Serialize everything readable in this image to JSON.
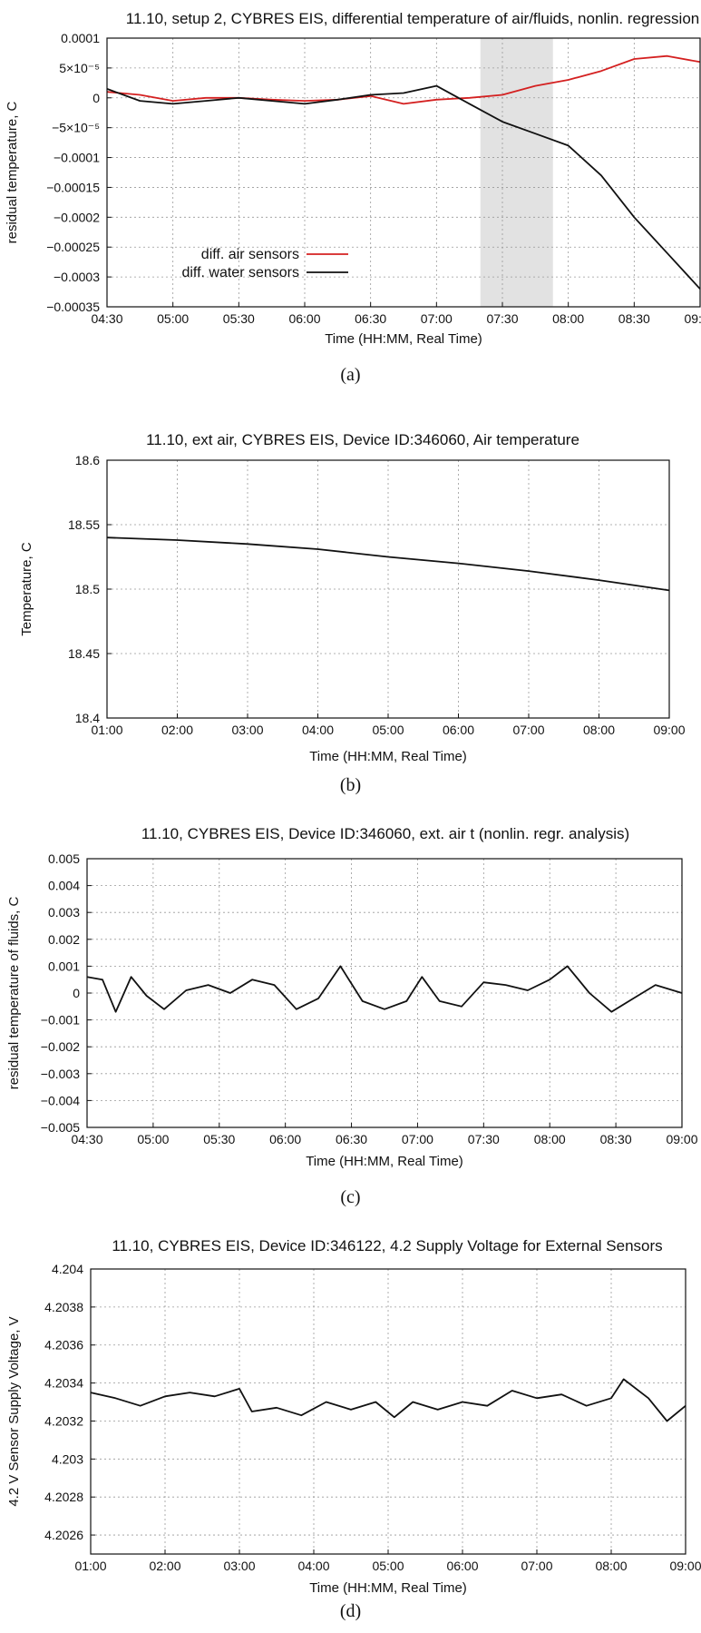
{
  "chart_data": [
    {
      "type": "line",
      "title": "11.10, setup 2, CYBRES EIS, differential temperature of air/fluids, nonlin. regression",
      "xlabel": "Time (HH:MM, Real Time)",
      "ylabel": "residual temperature, C",
      "x_unit": "time HH:MM",
      "xlim": [
        "04:30",
        "09:00"
      ],
      "ylim": [
        -0.00035,
        0.0001
      ],
      "x_ticks": [
        "04:30",
        "05:00",
        "05:30",
        "06:00",
        "06:30",
        "07:00",
        "07:30",
        "08:00",
        "08:30",
        "09:00"
      ],
      "y_ticks": [
        "0.0001",
        "5×10⁻⁵",
        "0",
        "−5×10⁻⁵",
        "−0.0001",
        "−0.00015",
        "−0.0002",
        "−0.00025",
        "−0.0003",
        "−0.00035"
      ],
      "grid": true,
      "legend_position": "lower-left",
      "shaded_region": [
        "07:20",
        "07:53"
      ],
      "caption": "(a)",
      "series": [
        {
          "name": "diff. air sensors",
          "color": "#d42020",
          "x": [
            "04:30",
            "04:45",
            "05:00",
            "05:15",
            "05:30",
            "05:45",
            "06:00",
            "06:15",
            "06:30",
            "06:45",
            "07:00",
            "07:15",
            "07:30",
            "07:45",
            "08:00",
            "08:15",
            "08:30",
            "08:45",
            "09:00"
          ],
          "values": [
            1e-05,
            5e-06,
            -5e-06,
            0,
            0,
            -3e-06,
            -5e-06,
            -3e-06,
            3e-06,
            -1e-05,
            -3e-06,
            0,
            5e-06,
            2e-05,
            3e-05,
            4.5e-05,
            6.5e-05,
            7e-05,
            6e-05
          ]
        },
        {
          "name": "diff. water sensors",
          "color": "#111111",
          "x": [
            "04:30",
            "04:45",
            "05:00",
            "05:15",
            "05:30",
            "05:45",
            "06:00",
            "06:15",
            "06:30",
            "06:45",
            "07:00",
            "07:15",
            "07:30",
            "07:45",
            "08:00",
            "08:15",
            "08:30",
            "08:45",
            "09:00"
          ],
          "values": [
            1.5e-05,
            -5e-06,
            -1e-05,
            -5e-06,
            0,
            -5e-06,
            -1e-05,
            -3e-06,
            5e-06,
            8e-06,
            2e-05,
            -1e-05,
            -4e-05,
            -6e-05,
            -8e-05,
            -0.00013,
            -0.0002,
            -0.00026,
            -0.00032
          ]
        }
      ]
    },
    {
      "type": "line",
      "title": "11.10, ext air, CYBRES EIS, Device ID:346060, Air temperature",
      "xlabel": "Time (HH:MM, Real Time)",
      "ylabel": "Temperature, C",
      "x_unit": "time HH:MM",
      "xlim": [
        "01:00",
        "09:00"
      ],
      "ylim": [
        18.4,
        18.6
      ],
      "x_ticks": [
        "01:00",
        "02:00",
        "03:00",
        "04:00",
        "05:00",
        "06:00",
        "07:00",
        "08:00",
        "09:00"
      ],
      "y_ticks": [
        "18.6",
        "18.55",
        "18.5",
        "18.45",
        "18.4"
      ],
      "grid": true,
      "caption": "(b)",
      "series": [
        {
          "color": "#111111",
          "x": [
            "01:00",
            "02:00",
            "03:00",
            "04:00",
            "05:00",
            "06:00",
            "07:00",
            "08:00",
            "09:00"
          ],
          "values": [
            18.54,
            18.538,
            18.535,
            18.531,
            18.525,
            18.52,
            18.514,
            18.507,
            18.499
          ]
        }
      ]
    },
    {
      "type": "line",
      "title": "11.10, CYBRES EIS, Device ID:346060, ext. air t (nonlin. regr. analysis)",
      "xlabel": "Time (HH:MM, Real Time)",
      "ylabel": "residual temperature of fluids, C",
      "x_unit": "time HH:MM",
      "xlim": [
        "04:30",
        "09:00"
      ],
      "ylim": [
        -0.005,
        0.005
      ],
      "x_ticks": [
        "04:30",
        "05:00",
        "05:30",
        "06:00",
        "06:30",
        "07:00",
        "07:30",
        "08:00",
        "08:30",
        "09:00"
      ],
      "y_ticks": [
        "0.005",
        "0.004",
        "0.003",
        "0.002",
        "0.001",
        "0",
        "−0.001",
        "−0.002",
        "−0.003",
        "−0.004",
        "−0.005"
      ],
      "grid": true,
      "caption": "(c)",
      "series": [
        {
          "color": "#111111",
          "x": [
            "04:30",
            "04:37",
            "04:43",
            "04:50",
            "04:57",
            "05:05",
            "05:15",
            "05:25",
            "05:35",
            "05:45",
            "05:55",
            "06:05",
            "06:15",
            "06:25",
            "06:35",
            "06:45",
            "06:55",
            "07:02",
            "07:10",
            "07:20",
            "07:30",
            "07:40",
            "07:50",
            "08:00",
            "08:08",
            "08:18",
            "08:28",
            "08:38",
            "08:48",
            "09:00"
          ],
          "values": [
            0.0006,
            0.0005,
            -0.0007,
            0.0006,
            -0.0001,
            -0.0006,
            0.0001,
            0.0003,
            0,
            0.0005,
            0.0003,
            -0.0006,
            -0.0002,
            0.001,
            -0.0003,
            -0.0006,
            -0.0003,
            0.0006,
            -0.0003,
            -0.0005,
            0.0004,
            0.0003,
            0.0001,
            0.0005,
            0.001,
            0,
            -0.0007,
            -0.0002,
            0.0003,
            0
          ]
        }
      ]
    },
    {
      "type": "line",
      "title": "11.10, CYBRES EIS, Device ID:346122, 4.2 Supply Voltage for External Sensors",
      "xlabel": "Time (HH:MM, Real Time)",
      "ylabel": "4.2 V Sensor Supply Voltage, V",
      "x_unit": "time HH:MM",
      "xlim": [
        "01:00",
        "09:00"
      ],
      "ylim": [
        4.2025,
        4.204
      ],
      "x_ticks": [
        "01:00",
        "02:00",
        "03:00",
        "04:00",
        "05:00",
        "06:00",
        "07:00",
        "08:00",
        "09:00"
      ],
      "y_ticks": [
        "4.204",
        "4.2038",
        "4.2036",
        "4.2034",
        "4.2032",
        "4.203",
        "4.2028",
        "4.2026"
      ],
      "grid": true,
      "caption": "(d)",
      "series": [
        {
          "color": "#111111",
          "x": [
            "01:00",
            "01:20",
            "01:40",
            "02:00",
            "02:20",
            "02:40",
            "03:00",
            "03:10",
            "03:30",
            "03:50",
            "04:10",
            "04:30",
            "04:50",
            "05:05",
            "05:20",
            "05:40",
            "06:00",
            "06:20",
            "06:40",
            "07:00",
            "07:20",
            "07:40",
            "08:00",
            "08:10",
            "08:30",
            "08:45",
            "09:00"
          ],
          "values": [
            4.20335,
            4.20332,
            4.20328,
            4.20333,
            4.20335,
            4.20333,
            4.20337,
            4.20325,
            4.20327,
            4.20323,
            4.2033,
            4.20326,
            4.2033,
            4.20322,
            4.2033,
            4.20326,
            4.2033,
            4.20328,
            4.20336,
            4.20332,
            4.20334,
            4.20328,
            4.20332,
            4.20342,
            4.20332,
            4.2032,
            4.20328
          ]
        }
      ]
    }
  ]
}
